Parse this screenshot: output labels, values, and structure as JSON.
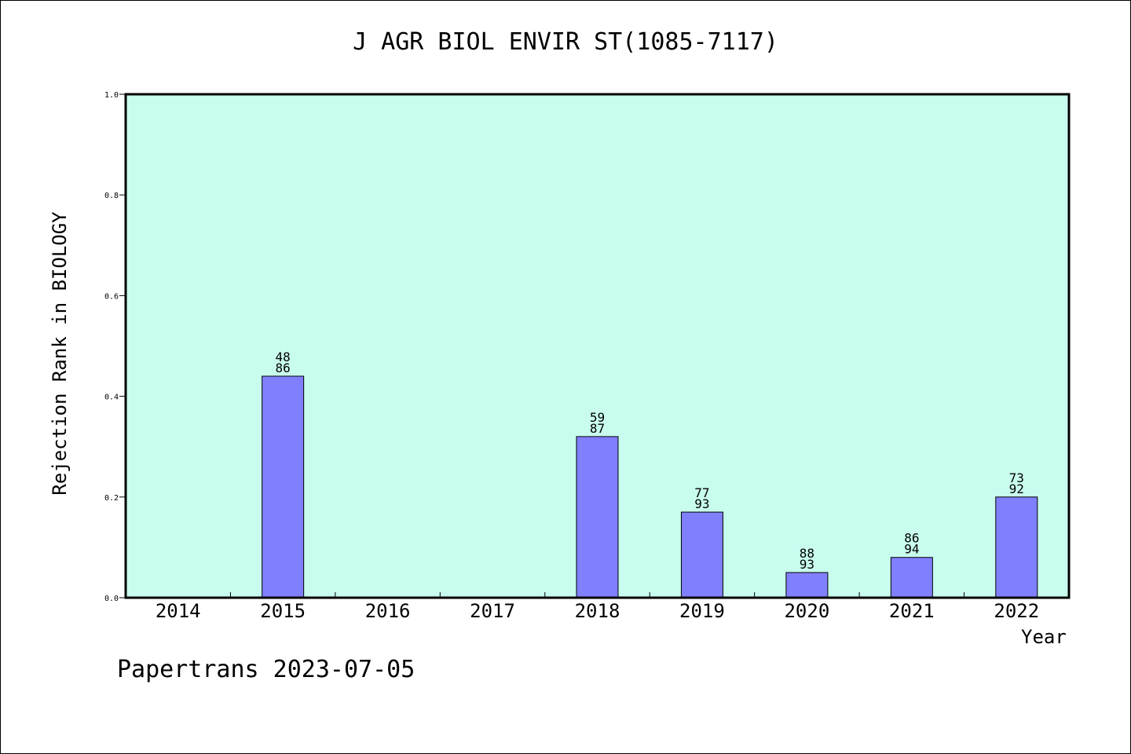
{
  "chart_data": {
    "type": "bar",
    "title": "J AGR BIOL ENVIR ST(1085-7117)",
    "xlabel": "Year",
    "ylabel": "Rejection Rank in BIOLOGY",
    "ylim": [
      0,
      1.0
    ],
    "yticks": [
      "0.0",
      "0.2",
      "0.4",
      "0.6",
      "0.8",
      "1.0"
    ],
    "categories": [
      "2014",
      "2015",
      "2016",
      "2017",
      "2018",
      "2019",
      "2020",
      "2021",
      "2022"
    ],
    "values": [
      null,
      0.44,
      null,
      null,
      0.32,
      0.17,
      0.05,
      0.08,
      0.2
    ],
    "bar_labels": [
      null,
      {
        "top": "48",
        "bottom": "86"
      },
      null,
      null,
      {
        "top": "59",
        "bottom": "87"
      },
      {
        "top": "77",
        "bottom": "93"
      },
      {
        "top": "88",
        "bottom": "93"
      },
      {
        "top": "86",
        "bottom": "94"
      },
      {
        "top": "73",
        "bottom": "92"
      }
    ],
    "grid": false,
    "colors": {
      "plot_background": "#c8fcee",
      "bar_fill": "#8080ff",
      "bar_stroke": "#000000"
    }
  },
  "footer": "Papertrans 2023-07-05"
}
